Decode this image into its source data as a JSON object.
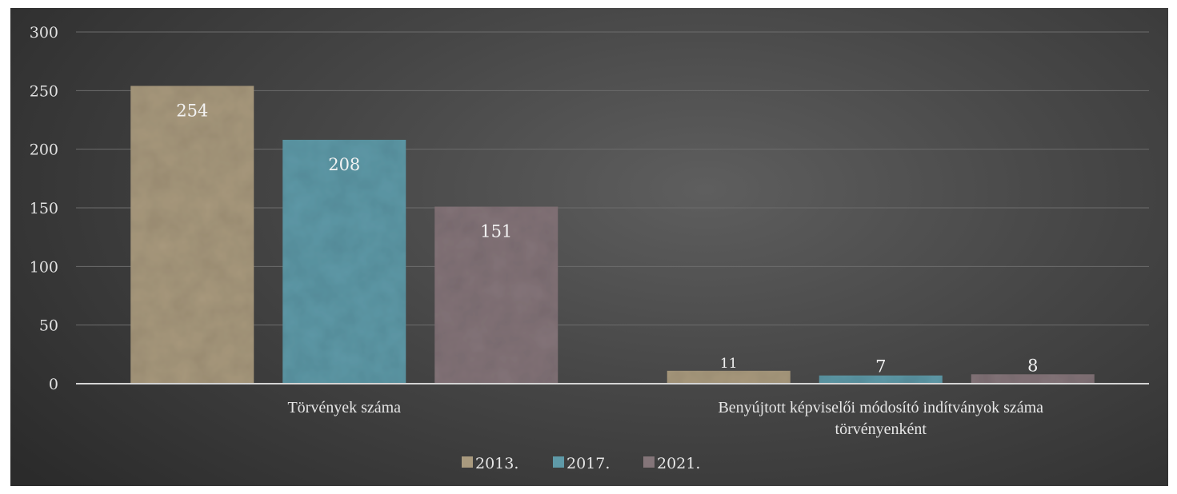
{
  "chart_data": {
    "type": "bar",
    "title": "",
    "xlabel": "",
    "ylabel": "",
    "ylim": [
      0,
      300
    ],
    "yticks": [
      0,
      50,
      100,
      150,
      200,
      250,
      300
    ],
    "grid": true,
    "legend_position": "bottom",
    "categories": [
      [
        "Törvények száma"
      ],
      [
        "Benyújtott képviselői módosító indítványok száma",
        "törvényenként"
      ]
    ],
    "series": [
      {
        "name": "2013.",
        "color": "#a99a7e",
        "values": [
          254,
          11
        ]
      },
      {
        "name": "2017.",
        "color": "#5f9aa8",
        "values": [
          208,
          7
        ]
      },
      {
        "name": "2021.",
        "color": "#847579",
        "values": [
          151,
          8
        ]
      }
    ]
  }
}
